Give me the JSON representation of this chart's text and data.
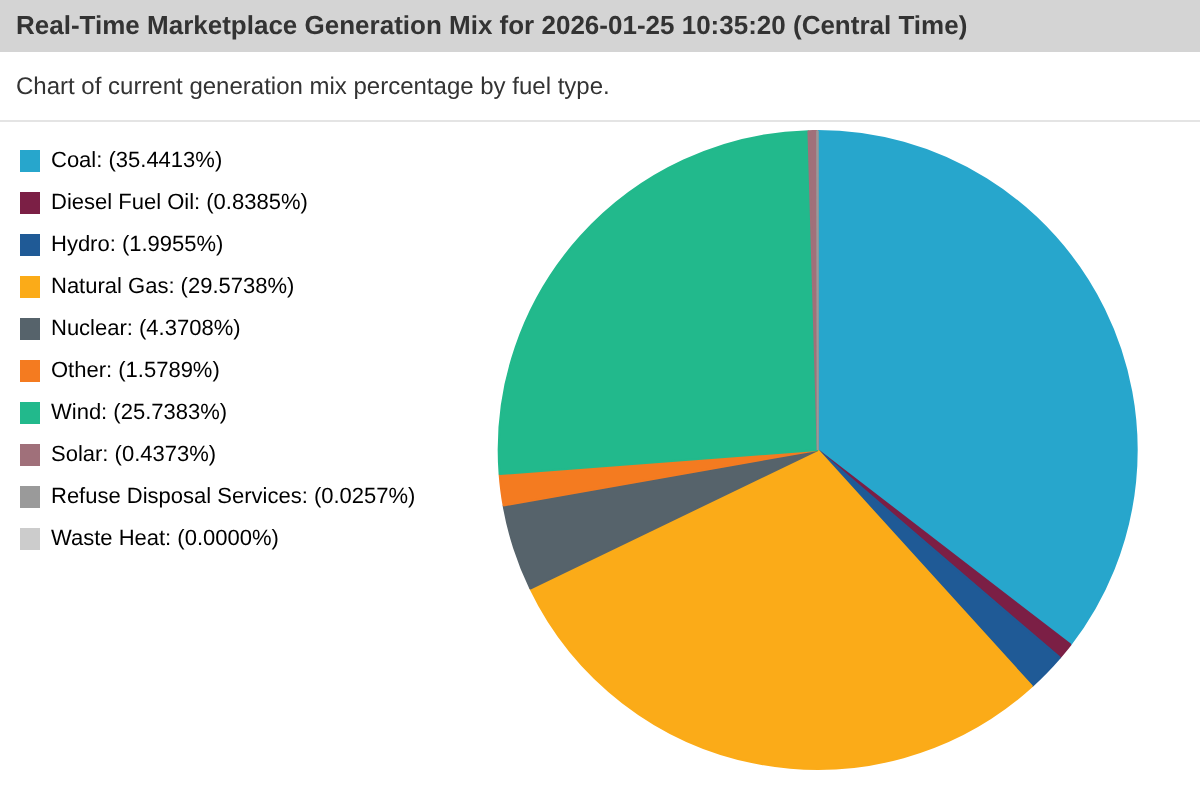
{
  "chart_data": {
    "type": "pie",
    "title": "Real-Time Marketplace Generation Mix for 2026-01-25 10:35:20 (Central Time)",
    "subtitle": "Chart of current generation mix percentage by fuel type.",
    "categories": [
      "Coal",
      "Diesel Fuel Oil",
      "Hydro",
      "Natural Gas",
      "Nuclear",
      "Other",
      "Wind",
      "Solar",
      "Refuse Disposal Services",
      "Waste Heat"
    ],
    "values": [
      35.4413,
      0.8385,
      1.9955,
      29.5738,
      4.3708,
      1.5789,
      25.7383,
      0.4373,
      0.0257,
      0
    ],
    "value_labels": [
      "(35.4413%)",
      "(0.8385%)",
      "(1.9955%)",
      "(29.5738%)",
      "(4.3708%)",
      "(1.5789%)",
      "(25.7383%)",
      "(0.4373%)",
      "(0.0257%)",
      "(0.0000%)"
    ],
    "colors": [
      "#27a6cc",
      "#7b1f45",
      "#1f5a96",
      "#fbab18",
      "#56636b",
      "#f47b20",
      "#22b98c",
      "#a0707a",
      "#9a9a9a",
      "#cccccc"
    ],
    "legend": "left"
  }
}
